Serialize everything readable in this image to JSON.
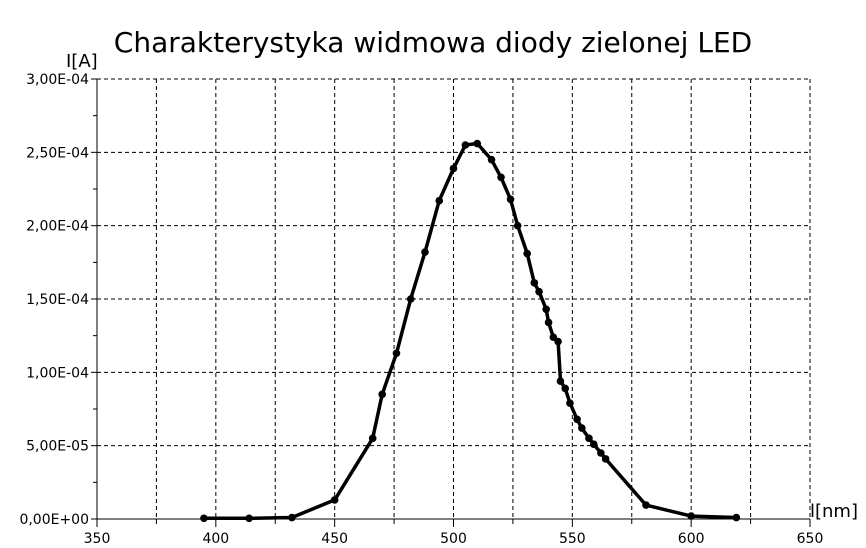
{
  "chart_data": {
    "type": "line",
    "title": "Charakterystyka widmowa diody zielonej LED",
    "xlabel": "l[nm]",
    "ylabel": "I[A]",
    "xlim": [
      350,
      650
    ],
    "ylim": [
      0,
      0.0003
    ],
    "x_ticks": [
      350,
      400,
      450,
      500,
      550,
      600,
      650
    ],
    "x_tick_labels": [
      "350",
      "400",
      "450",
      "500",
      "550",
      "600",
      "650"
    ],
    "y_ticks": [
      0,
      5e-05,
      0.0001,
      0.00015,
      0.0002,
      0.00025,
      0.0003
    ],
    "y_tick_labels": [
      "0,00E+00",
      "5,00E-05",
      "1,00E-04",
      "1,50E-04",
      "2,00E-04",
      "2,50E-04",
      "3,00E-04"
    ],
    "grid": true,
    "line_color": "#000000",
    "series": [
      {
        "x": [
          395,
          414,
          432,
          450,
          466,
          470,
          476,
          482,
          488,
          494,
          500,
          505,
          510,
          516,
          520,
          524,
          527,
          531,
          534,
          536,
          539,
          540,
          542,
          544,
          545,
          547,
          549,
          552,
          554,
          557,
          559,
          562,
          564,
          581,
          600,
          619
        ],
        "y": [
          5e-07,
          5e-07,
          1e-06,
          1.3e-05,
          5.5e-05,
          8.5e-05,
          0.000113,
          0.00015,
          0.000182,
          0.000217,
          0.000239,
          0.000255,
          0.000256,
          0.000245,
          0.000233,
          0.000218,
          0.0002,
          0.000181,
          0.000161,
          0.000155,
          0.000143,
          0.000134,
          0.000124,
          0.000121,
          9.4e-05,
          8.9e-05,
          7.9e-05,
          6.8e-05,
          6.2e-05,
          5.5e-05,
          5.1e-05,
          4.5e-05,
          4.1e-05,
          9.5e-06,
          2e-06,
          1e-06
        ]
      }
    ]
  }
}
